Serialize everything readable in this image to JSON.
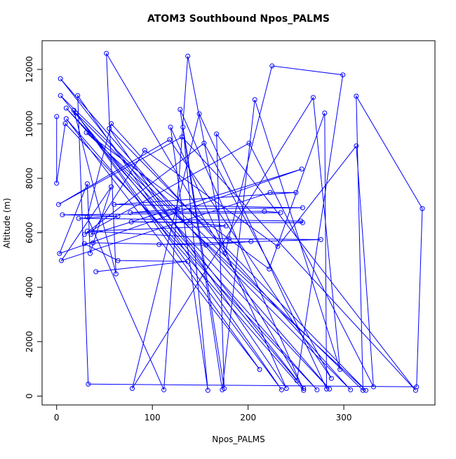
{
  "chart_data": {
    "type": "line",
    "title": "ATOM3 Southbound Npos_PALMS",
    "x_label": "Npos_PALMS",
    "y_label": "Altitude (m)",
    "color": "#0000ff",
    "markers": true,
    "x": [
      0,
      0,
      9,
      272,
      10,
      285,
      4,
      258,
      52,
      62,
      18,
      235,
      22,
      33,
      376,
      382,
      313,
      320,
      4,
      251,
      299,
      225,
      176,
      137,
      112,
      32,
      57,
      307,
      20,
      212,
      10,
      258,
      129,
      173,
      207,
      296,
      268,
      79,
      149,
      282,
      280,
      222,
      31,
      323,
      55,
      240,
      119,
      158,
      132,
      175,
      167,
      375,
      131,
      2,
      118,
      287,
      154,
      29,
      201,
      331,
      313,
      231,
      92,
      36,
      256,
      3,
      32,
      35,
      57,
      5,
      223,
      250,
      60,
      257,
      126,
      77,
      217,
      234,
      6,
      64,
      23,
      255,
      257,
      78,
      139,
      177,
      32,
      180,
      276,
      107,
      203,
      156,
      38,
      29,
      64,
      137,
      41
    ],
    "values": [
      10270,
      7820,
      10010,
      230,
      10580,
      260,
      11660,
      280,
      12590,
      4490,
      10500,
      230,
      11040,
      440,
      340,
      6890,
      11020,
      210,
      11040,
      570,
      11800,
      12130,
      5260,
      12490,
      230,
      6580,
      10010,
      230,
      10400,
      980,
      10190,
      210,
      10530,
      230,
      10890,
      980,
      10970,
      280,
      10370,
      260,
      10400,
      4670,
      9680,
      210,
      9830,
      280,
      9880,
      210,
      9880,
      280,
      9630,
      210,
      9520,
      7040,
      9420,
      650,
      9290,
      5940,
      9290,
      340,
      9190,
      5500,
      9030,
      5940,
      8340,
      5240,
      7800,
      5240,
      7690,
      4980,
      7480,
      7480,
      7040,
      6920,
      6870,
      6740,
      6790,
      6740,
      6660,
      6610,
      6530,
      6430,
      6370,
      6400,
      6370,
      6250,
      6060,
      5780,
      5750,
      5570,
      5680,
      5550,
      5630,
      5600,
      4980,
      4950,
      4570
    ],
    "xlim": [
      -15.2,
      395.2
    ],
    "xticks": [
      0,
      100,
      200,
      300
    ],
    "ylim": [
      -326,
      13056
    ],
    "yticks": [
      0,
      2000,
      4000,
      6000,
      8000,
      10000,
      12000
    ]
  }
}
